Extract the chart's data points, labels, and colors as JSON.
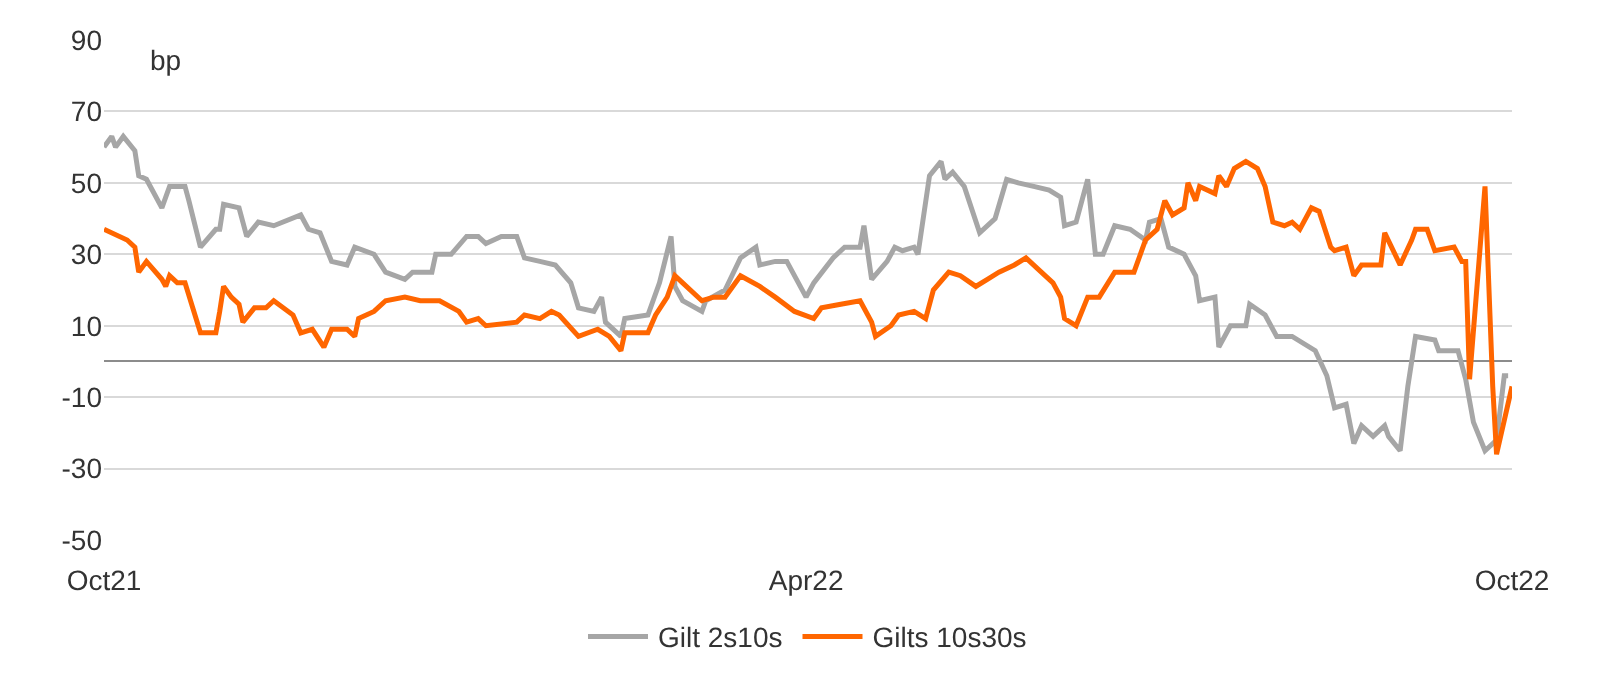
{
  "chart_data": {
    "type": "line",
    "ylabel": "bp",
    "ylim": [
      -50,
      90
    ],
    "yticks": [
      -50,
      -30,
      -10,
      10,
      30,
      50,
      70,
      90
    ],
    "xlim": [
      "2021-10-01",
      "2022-10-01"
    ],
    "xticks": [
      {
        "value": "2021-10-01",
        "label": "Oct21"
      },
      {
        "value": "2022-04-01",
        "label": "Apr22"
      },
      {
        "value": "2022-10-01",
        "label": "Oct22"
      }
    ],
    "grid": "y",
    "legend": "bottom",
    "marker": "none",
    "line_style": "solid",
    "series": [
      {
        "name": "Gilt 2s10s",
        "color": "#a6a6a6",
        "x": [
          "2021-10-01",
          "2021-10-03",
          "2021-10-04",
          "2021-10-06",
          "2021-10-09",
          "2021-10-10",
          "2021-10-12",
          "2021-10-16",
          "2021-10-18",
          "2021-10-22",
          "2021-10-23",
          "2021-10-26",
          "2021-10-30",
          "2021-10-31",
          "2021-11-01",
          "2021-11-05",
          "2021-11-07",
          "2021-11-10",
          "2021-11-14",
          "2021-11-21",
          "2021-11-23",
          "2021-11-26",
          "2021-11-29",
          "2021-12-03",
          "2021-12-05",
          "2021-12-10",
          "2021-12-13",
          "2021-12-18",
          "2021-12-20",
          "2021-12-25",
          "2021-12-26",
          "2021-12-30",
          "2022-01-03",
          "2022-01-06",
          "2022-01-08",
          "2022-01-12",
          "2022-01-16",
          "2022-01-18",
          "2022-01-22",
          "2022-01-26",
          "2022-01-30",
          "2022-02-01",
          "2022-02-05",
          "2022-02-07",
          "2022-02-08",
          "2022-02-12",
          "2022-02-13",
          "2022-02-19",
          "2022-02-22",
          "2022-02-25",
          "2022-02-26",
          "2022-02-28",
          "2022-03-05",
          "2022-03-06",
          "2022-03-11",
          "2022-03-15",
          "2022-03-19",
          "2022-03-20",
          "2022-03-24",
          "2022-03-27",
          "2022-04-01",
          "2022-04-03",
          "2022-04-08",
          "2022-04-11",
          "2022-04-15",
          "2022-04-16",
          "2022-04-18",
          "2022-04-22",
          "2022-04-24",
          "2022-04-26",
          "2022-04-29",
          "2022-04-30",
          "2022-05-03",
          "2022-05-06",
          "2022-05-07",
          "2022-05-09",
          "2022-05-12",
          "2022-05-16",
          "2022-05-20",
          "2022-05-23",
          "2022-05-26",
          "2022-05-30",
          "2022-06-03",
          "2022-06-06",
          "2022-06-07",
          "2022-06-10",
          "2022-06-13",
          "2022-06-15",
          "2022-06-17",
          "2022-06-20",
          "2022-06-24",
          "2022-06-28",
          "2022-06-29",
          "2022-07-02",
          "2022-07-04",
          "2022-07-08",
          "2022-07-11",
          "2022-07-12",
          "2022-07-16",
          "2022-07-17",
          "2022-07-20",
          "2022-07-24",
          "2022-07-25",
          "2022-07-29",
          "2022-08-01",
          "2022-08-05",
          "2022-08-11",
          "2022-08-14",
          "2022-08-16",
          "2022-08-19",
          "2022-08-21",
          "2022-08-23",
          "2022-08-26",
          "2022-08-29",
          "2022-08-30",
          "2022-09-02",
          "2022-09-04",
          "2022-09-06",
          "2022-09-11",
          "2022-09-12",
          "2022-09-17",
          "2022-09-19",
          "2022-09-21",
          "2022-09-24",
          "2022-09-27",
          "2022-09-29",
          "2022-09-30"
        ],
        "values": [
          60,
          63,
          60,
          63,
          59,
          52,
          51,
          43,
          49,
          49,
          45,
          32,
          37,
          37,
          44,
          43,
          35,
          39,
          38,
          41,
          37,
          36,
          28,
          27,
          32,
          30,
          25,
          23,
          25,
          25,
          30,
          30,
          35,
          35,
          33,
          35,
          35,
          29,
          28,
          27,
          22,
          15,
          14,
          18,
          11,
          7,
          12,
          13,
          22,
          35,
          21,
          17,
          14,
          17,
          20,
          29,
          32,
          27,
          28,
          28,
          18,
          22,
          29,
          32,
          32,
          38,
          23,
          28,
          32,
          31,
          32,
          30,
          52,
          56,
          51,
          53,
          49,
          36,
          40,
          51,
          50,
          49,
          48,
          46,
          38,
          39,
          51,
          30,
          30,
          38,
          37,
          34,
          39,
          40,
          32,
          30,
          24,
          17,
          18,
          4,
          10,
          10,
          16,
          13,
          7,
          7,
          3,
          -4,
          -13,
          -12,
          -23,
          -18,
          -21,
          -18,
          -21,
          -25,
          -7,
          7,
          6,
          3,
          3,
          -5,
          -17,
          -25,
          -22,
          -4,
          -4
        ]
      },
      {
        "name": "Gilts 10s30s",
        "color": "#ff6600",
        "x": [
          "2021-10-01",
          "2021-10-07",
          "2021-10-09",
          "2021-10-10",
          "2021-10-12",
          "2021-10-16",
          "2021-10-17",
          "2021-10-18",
          "2021-10-20",
          "2021-10-22",
          "2021-10-24",
          "2021-10-26",
          "2021-10-30",
          "2021-10-31",
          "2021-11-01",
          "2021-11-03",
          "2021-11-05",
          "2021-11-06",
          "2021-11-09",
          "2021-11-12",
          "2021-11-14",
          "2021-11-19",
          "2021-11-21",
          "2021-11-24",
          "2021-11-27",
          "2021-11-29",
          "2021-12-03",
          "2021-12-05",
          "2021-12-06",
          "2021-12-10",
          "2021-12-13",
          "2021-12-18",
          "2021-12-22",
          "2021-12-27",
          "2022-01-01",
          "2022-01-03",
          "2022-01-06",
          "2022-01-08",
          "2022-01-16",
          "2022-01-18",
          "2022-01-22",
          "2022-01-25",
          "2022-01-27",
          "2022-02-01",
          "2022-02-06",
          "2022-02-09",
          "2022-02-12",
          "2022-02-13",
          "2022-02-19",
          "2022-02-21",
          "2022-02-24",
          "2022-02-26",
          "2022-02-28",
          "2022-03-05",
          "2022-03-08",
          "2022-03-11",
          "2022-03-15",
          "2022-03-20",
          "2022-03-24",
          "2022-03-29",
          "2022-04-03",
          "2022-04-05",
          "2022-04-10",
          "2022-04-15",
          "2022-04-18",
          "2022-04-19",
          "2022-04-23",
          "2022-04-25",
          "2022-04-29",
          "2022-05-02",
          "2022-05-04",
          "2022-05-08",
          "2022-05-11",
          "2022-05-15",
          "2022-05-18",
          "2022-05-21",
          "2022-05-25",
          "2022-05-28",
          "2022-05-31",
          "2022-06-04",
          "2022-06-06",
          "2022-06-07",
          "2022-06-10",
          "2022-06-13",
          "2022-06-16",
          "2022-06-20",
          "2022-06-25",
          "2022-06-28",
          "2022-07-01",
          "2022-07-03",
          "2022-07-05",
          "2022-07-08",
          "2022-07-09",
          "2022-07-11",
          "2022-07-12",
          "2022-07-16",
          "2022-07-17",
          "2022-07-19",
          "2022-07-21",
          "2022-07-24",
          "2022-07-27",
          "2022-07-29",
          "2022-07-31",
          "2022-08-03",
          "2022-08-05",
          "2022-08-07",
          "2022-08-10",
          "2022-08-12",
          "2022-08-15",
          "2022-08-16",
          "2022-08-19",
          "2022-08-21",
          "2022-08-23",
          "2022-08-28",
          "2022-08-29",
          "2022-09-02",
          "2022-09-05",
          "2022-09-06",
          "2022-09-09",
          "2022-09-11",
          "2022-09-16",
          "2022-09-18",
          "2022-09-19",
          "2022-09-20",
          "2022-09-24",
          "2022-09-26",
          "2022-09-27",
          "2022-10-01"
        ],
        "values": [
          37,
          34,
          32,
          25,
          28,
          23,
          21,
          24,
          22,
          22,
          15,
          8,
          8,
          14,
          21,
          18,
          16,
          11,
          15,
          15,
          17,
          13,
          8,
          9,
          4,
          9,
          9,
          7,
          12,
          14,
          17,
          18,
          17,
          17,
          14,
          11,
          12,
          10,
          11,
          13,
          12,
          14,
          13,
          7,
          9,
          7,
          3,
          8,
          8,
          13,
          18,
          24,
          22,
          17,
          18,
          18,
          24,
          21,
          18,
          14,
          12,
          15,
          16,
          17,
          11,
          7,
          10,
          13,
          14,
          12,
          20,
          25,
          24,
          21,
          23,
          25,
          27,
          29,
          26,
          22,
          18,
          12,
          10,
          18,
          18,
          25,
          25,
          34,
          37,
          45,
          41,
          43,
          50,
          45,
          49,
          47,
          52,
          49,
          54,
          56,
          54,
          49,
          39,
          38,
          39,
          37,
          43,
          42,
          32,
          31,
          32,
          24,
          27,
          27,
          36,
          27,
          34,
          37,
          37,
          31,
          32,
          28,
          28,
          -5,
          49,
          -7,
          -26,
          -7
        ]
      }
    ]
  }
}
